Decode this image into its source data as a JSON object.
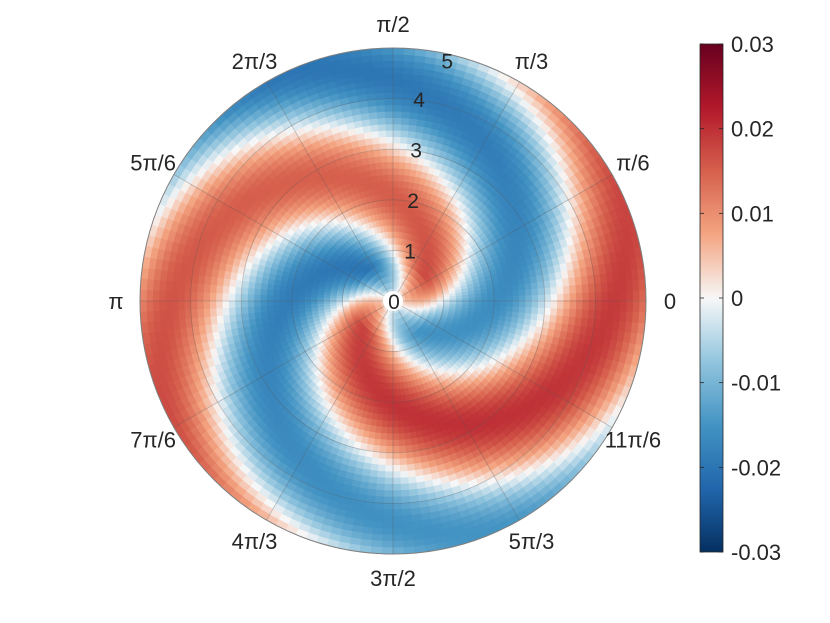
{
  "chart_data": {
    "type": "heatmap",
    "coordinate_system": "polar",
    "theta_tick_labels": [
      "0",
      "π/6",
      "π/3",
      "π/2",
      "2π/3",
      "5π/6",
      "π",
      "7π/6",
      "4π/3",
      "3π/2",
      "5π/3",
      "11π/6"
    ],
    "theta_ticks": [
      0,
      0.5236,
      1.0472,
      1.5708,
      2.0944,
      2.618,
      3.1416,
      3.6652,
      4.1888,
      4.7124,
      5.236,
      5.7596
    ],
    "r_ticks": [
      0,
      1,
      2,
      3,
      4,
      5
    ],
    "r_tick_labels": [
      "0",
      "1",
      "2",
      "3",
      "4",
      "5"
    ],
    "rlim": [
      0,
      5
    ],
    "grid": true,
    "colormap": "diverging red-white-blue",
    "colorbar": {
      "ticks": [
        0.03,
        0.02,
        0.01,
        0,
        -0.01,
        -0.02,
        -0.03
      ],
      "tick_labels": [
        "0.03",
        "0.02",
        "0.01",
        "0",
        "-0.01",
        "-0.02",
        "-0.03"
      ],
      "clim": [
        -0.03,
        0.03
      ],
      "position": "right"
    },
    "colors": {
      "max": "#67001f",
      "high": "#d6604d",
      "mid_high": "#f4a582",
      "zero": "#f7f7f7",
      "mid_low": "#92c5de",
      "low": "#4393c3",
      "min": "#053061"
    },
    "field": {
      "description_pattern": "two-arm spiral, positive arm and negative arm",
      "amplitude_range": [
        -0.02,
        0.015
      ]
    },
    "title": "",
    "xlabel": "",
    "ylabel": ""
  }
}
